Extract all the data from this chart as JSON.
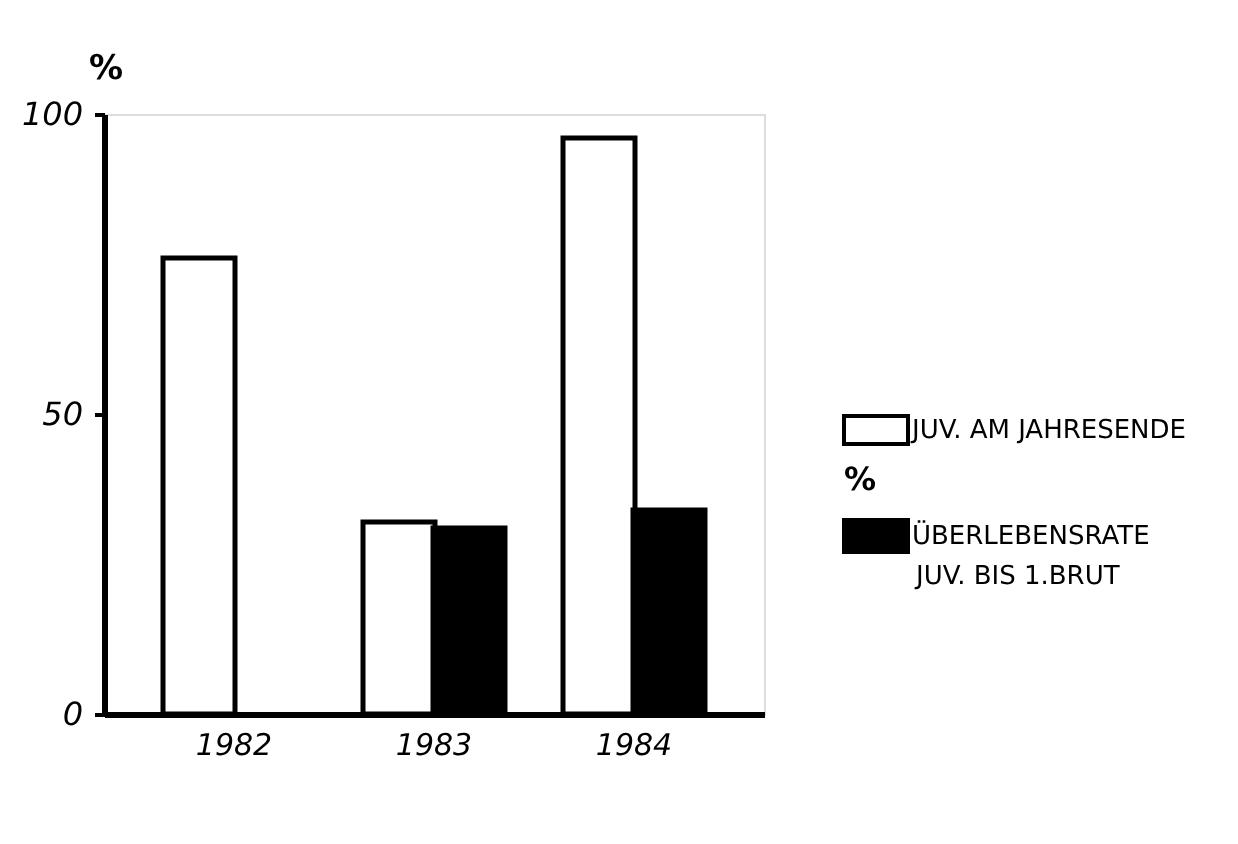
{
  "chart_data": {
    "type": "bar",
    "ylabel": "%",
    "categories": [
      "1982",
      "1983",
      "1984"
    ],
    "series": [
      {
        "name": "JUV. AM JAHRESENDE",
        "color": "#ffffff",
        "values": [
          76,
          32,
          96
        ]
      },
      {
        "name": "ÜBERLEBENSRATE JUV. BIS 1.BRUT",
        "color": "#000000",
        "values": [
          null,
          31,
          34
        ]
      }
    ],
    "annotations": [
      "%"
    ],
    "ylim": [
      0,
      100
    ],
    "yticks": [
      0,
      50,
      100
    ],
    "grid": false,
    "legend": "right"
  }
}
